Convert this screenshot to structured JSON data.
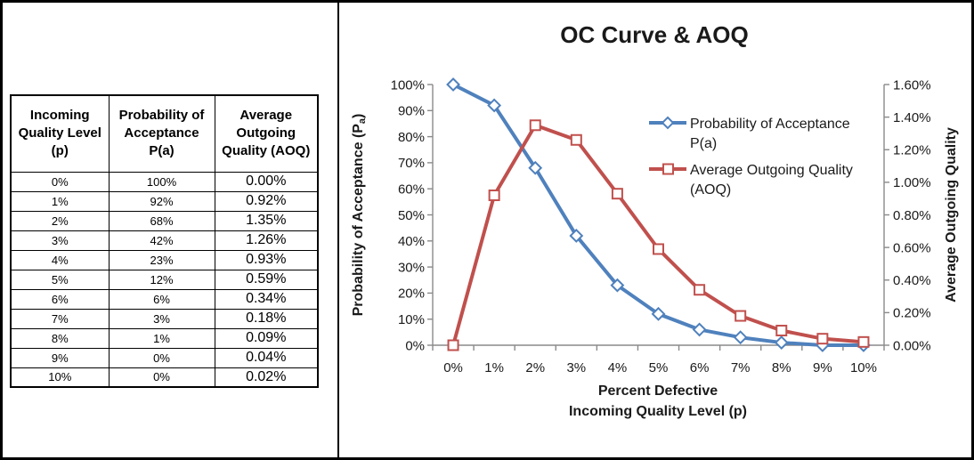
{
  "table": {
    "headers": [
      "Incoming Quality Level (p)",
      "Probability of Acceptance P(a)",
      "Average Outgoing Quality (AOQ)"
    ],
    "rows": [
      [
        "0%",
        "100%",
        "0.00%"
      ],
      [
        "1%",
        "92%",
        "0.92%"
      ],
      [
        "2%",
        "68%",
        "1.35%"
      ],
      [
        "3%",
        "42%",
        "1.26%"
      ],
      [
        "4%",
        "23%",
        "0.93%"
      ],
      [
        "5%",
        "12%",
        "0.59%"
      ],
      [
        "6%",
        "6%",
        "0.34%"
      ],
      [
        "7%",
        "3%",
        "0.18%"
      ],
      [
        "8%",
        "1%",
        "0.09%"
      ],
      [
        "9%",
        "0%",
        "0.04%"
      ],
      [
        "10%",
        "0%",
        "0.02%"
      ]
    ]
  },
  "chart_data": {
    "type": "line",
    "title": "OC Curve & AOQ",
    "categories": [
      "0%",
      "1%",
      "2%",
      "3%",
      "4%",
      "5%",
      "6%",
      "7%",
      "8%",
      "9%",
      "10%"
    ],
    "series": [
      {
        "name": "Probability of Acceptance P(a)",
        "axis": "left",
        "color": "#4F81BD",
        "marker": "diamond",
        "values": [
          100,
          92,
          68,
          42,
          23,
          12,
          6,
          3,
          1,
          0,
          0
        ]
      },
      {
        "name": "Average Outgoing Quality (AOQ)",
        "axis": "right",
        "color": "#C0504D",
        "marker": "square",
        "values": [
          0.0,
          0.92,
          1.35,
          1.26,
          0.93,
          0.59,
          0.34,
          0.18,
          0.09,
          0.04,
          0.02
        ]
      }
    ],
    "left_axis": {
      "min": 0,
      "max": 100,
      "tick_labels": [
        "100%",
        "90%",
        "80%",
        "70%",
        "60%",
        "50%",
        "40%",
        "30%",
        "20%",
        "10%",
        "0%"
      ],
      "title_pre": "Probability of Acceptance (P",
      "title_sub": "a",
      "title_post": ")"
    },
    "right_axis": {
      "min": 0,
      "max": 1.6,
      "tick_labels": [
        "1.60%",
        "1.40%",
        "1.20%",
        "1.00%",
        "0.80%",
        "0.60%",
        "0.40%",
        "0.20%",
        "0.00%"
      ],
      "title": "Average Outgoing Quality"
    },
    "x_axis": {
      "title_line1": "Percent Defective",
      "title_line2": "Incoming Quality Level  (p)"
    },
    "legend": {
      "position": "inside-top-right",
      "items": [
        {
          "line1": "Probability of Acceptance",
          "line2": "P(a)",
          "series": 0
        },
        {
          "line1": "Average Outgoing Quality",
          "line2": "(AOQ)",
          "series": 1
        }
      ]
    },
    "grid": "off"
  }
}
